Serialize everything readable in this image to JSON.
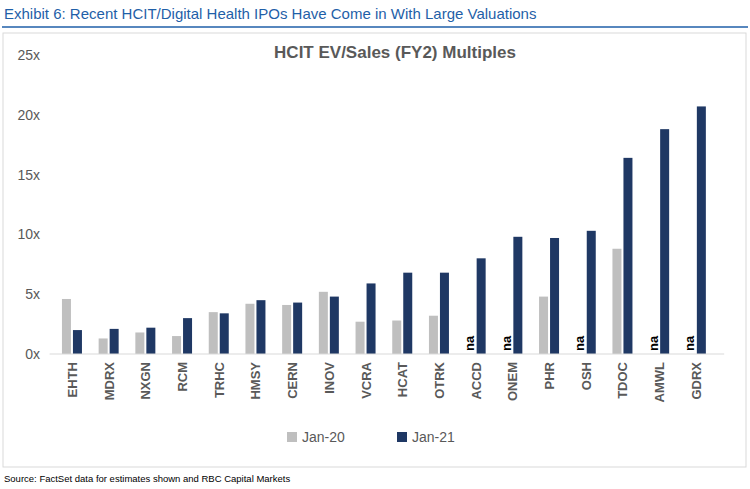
{
  "exhibit_title": "Exhibit 6: Recent HCIT/Digital Health IPOs Have Come in With Large Valuations",
  "source": "Source: FactSet data for estimates shown and RBC Capital Markets",
  "chart_data": {
    "type": "bar",
    "title": "HCIT EV/Sales (FY2) Multiples",
    "categories": [
      "EHTH",
      "MDRX",
      "NXGN",
      "RCM",
      "TRHC",
      "HMSY",
      "CERN",
      "INOV",
      "VCRA",
      "HCAT",
      "OTRK",
      "ACCD",
      "ONEM",
      "PHR",
      "OSH",
      "TDOC",
      "AMWL",
      "GDRX"
    ],
    "series": [
      {
        "name": "Jan-20",
        "color": "#bfbfbf",
        "values": [
          4.6,
          1.3,
          1.8,
          1.5,
          3.5,
          4.2,
          4.1,
          5.2,
          2.7,
          2.8,
          3.2,
          null,
          null,
          4.8,
          null,
          8.8,
          null,
          null
        ]
      },
      {
        "name": "Jan-21",
        "color": "#1f3864",
        "values": [
          2.0,
          2.1,
          2.2,
          3.0,
          3.4,
          4.5,
          4.3,
          4.8,
          5.9,
          6.8,
          6.8,
          8.0,
          9.8,
          9.7,
          10.3,
          16.4,
          18.8,
          20.7
        ]
      }
    ],
    "missing_label": "na",
    "ylim": [
      0,
      25
    ],
    "yticks": [
      {
        "value": 0,
        "label": "0x"
      },
      {
        "value": 5,
        "label": "5x"
      },
      {
        "value": 10,
        "label": "10x"
      },
      {
        "value": 15,
        "label": "15x"
      },
      {
        "value": 20,
        "label": "20x"
      },
      {
        "value": 25,
        "label": "25x"
      }
    ],
    "grid": false,
    "legend": "bottom"
  }
}
